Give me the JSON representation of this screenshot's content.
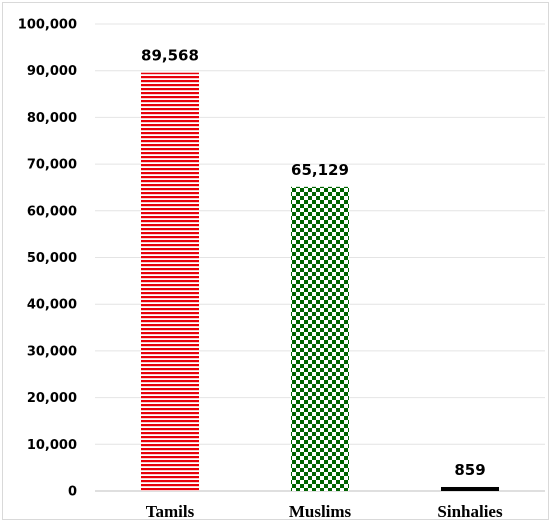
{
  "chart_data": {
    "type": "bar",
    "categories": [
      "Tamils",
      "Muslims",
      "Sinhalies"
    ],
    "values": [
      89568,
      65129,
      859
    ],
    "data_labels": [
      "89,568",
      "65,129",
      "859"
    ],
    "ylim": [
      0,
      100000
    ],
    "yticks": [
      0,
      10000,
      20000,
      30000,
      40000,
      50000,
      60000,
      70000,
      80000,
      90000,
      100000
    ],
    "ytick_labels": [
      "0",
      "10,000",
      "20,000",
      "30,000",
      "40,000",
      "50,000",
      "60,000",
      "70,000",
      "80,000",
      "90,000",
      "100,000"
    ],
    "grid": true,
    "legend": "none",
    "colors": [
      "#e8000b",
      "#006400",
      "#000000"
    ],
    "patterns": [
      "horizontal-stripes",
      "checkerboard",
      "solid"
    ]
  }
}
